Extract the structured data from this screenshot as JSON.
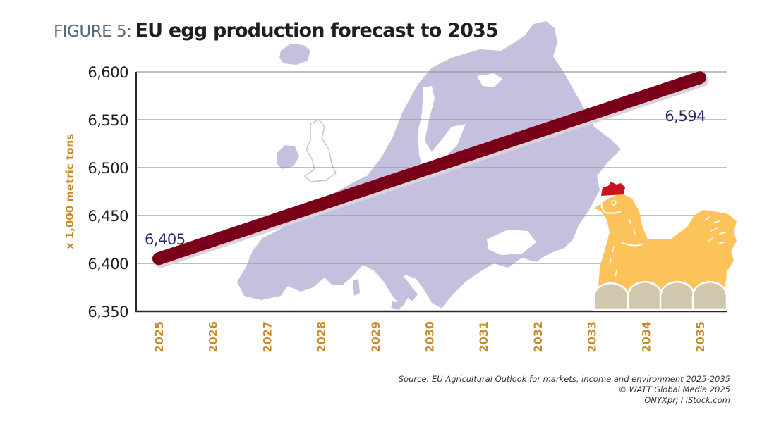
{
  "figure": {
    "prefix": "FIGURE 5:",
    "title": "EU egg production forecast to 2035"
  },
  "colors": {
    "line": "#7a0019",
    "map": "#c5c0de",
    "axis_label": "#c88a2a",
    "data_label": "#2e2a66",
    "grid": "#9a9a9a",
    "hen": "#fbc35a",
    "comb": "#c8141e",
    "egg": "#cfc8ae"
  },
  "source": {
    "line1": "Source: EU Agricultural Outlook for markets, income and environment 2025-2035",
    "line2": "© WATT Global Media 2025",
    "line3": "ONYXprj I iStock.com"
  },
  "chart_data": {
    "type": "line",
    "title": "EU egg production forecast to 2035",
    "xlabel": "",
    "ylabel": "x 1,000 metric tons",
    "categories": [
      "2025",
      "2026",
      "2027",
      "2028",
      "2029",
      "2030",
      "2031",
      "2032",
      "2033",
      "2034",
      "2035"
    ],
    "series": [
      {
        "name": "EU egg production",
        "x": [
          "2025",
          "2035"
        ],
        "values": [
          6405,
          6594
        ]
      }
    ],
    "data_labels": [
      {
        "x": "2025",
        "value": 6405,
        "text": "6,405"
      },
      {
        "x": "2035",
        "value": 6594,
        "text": "6,594"
      }
    ],
    "ylim": [
      6350,
      6600
    ],
    "yticks": [
      6350,
      6400,
      6450,
      6500,
      6550,
      6600
    ],
    "ytick_labels": [
      "6,350",
      "6,400",
      "6,450",
      "6,500",
      "6,550",
      "6,600"
    ],
    "grid": true,
    "legend": "none"
  }
}
